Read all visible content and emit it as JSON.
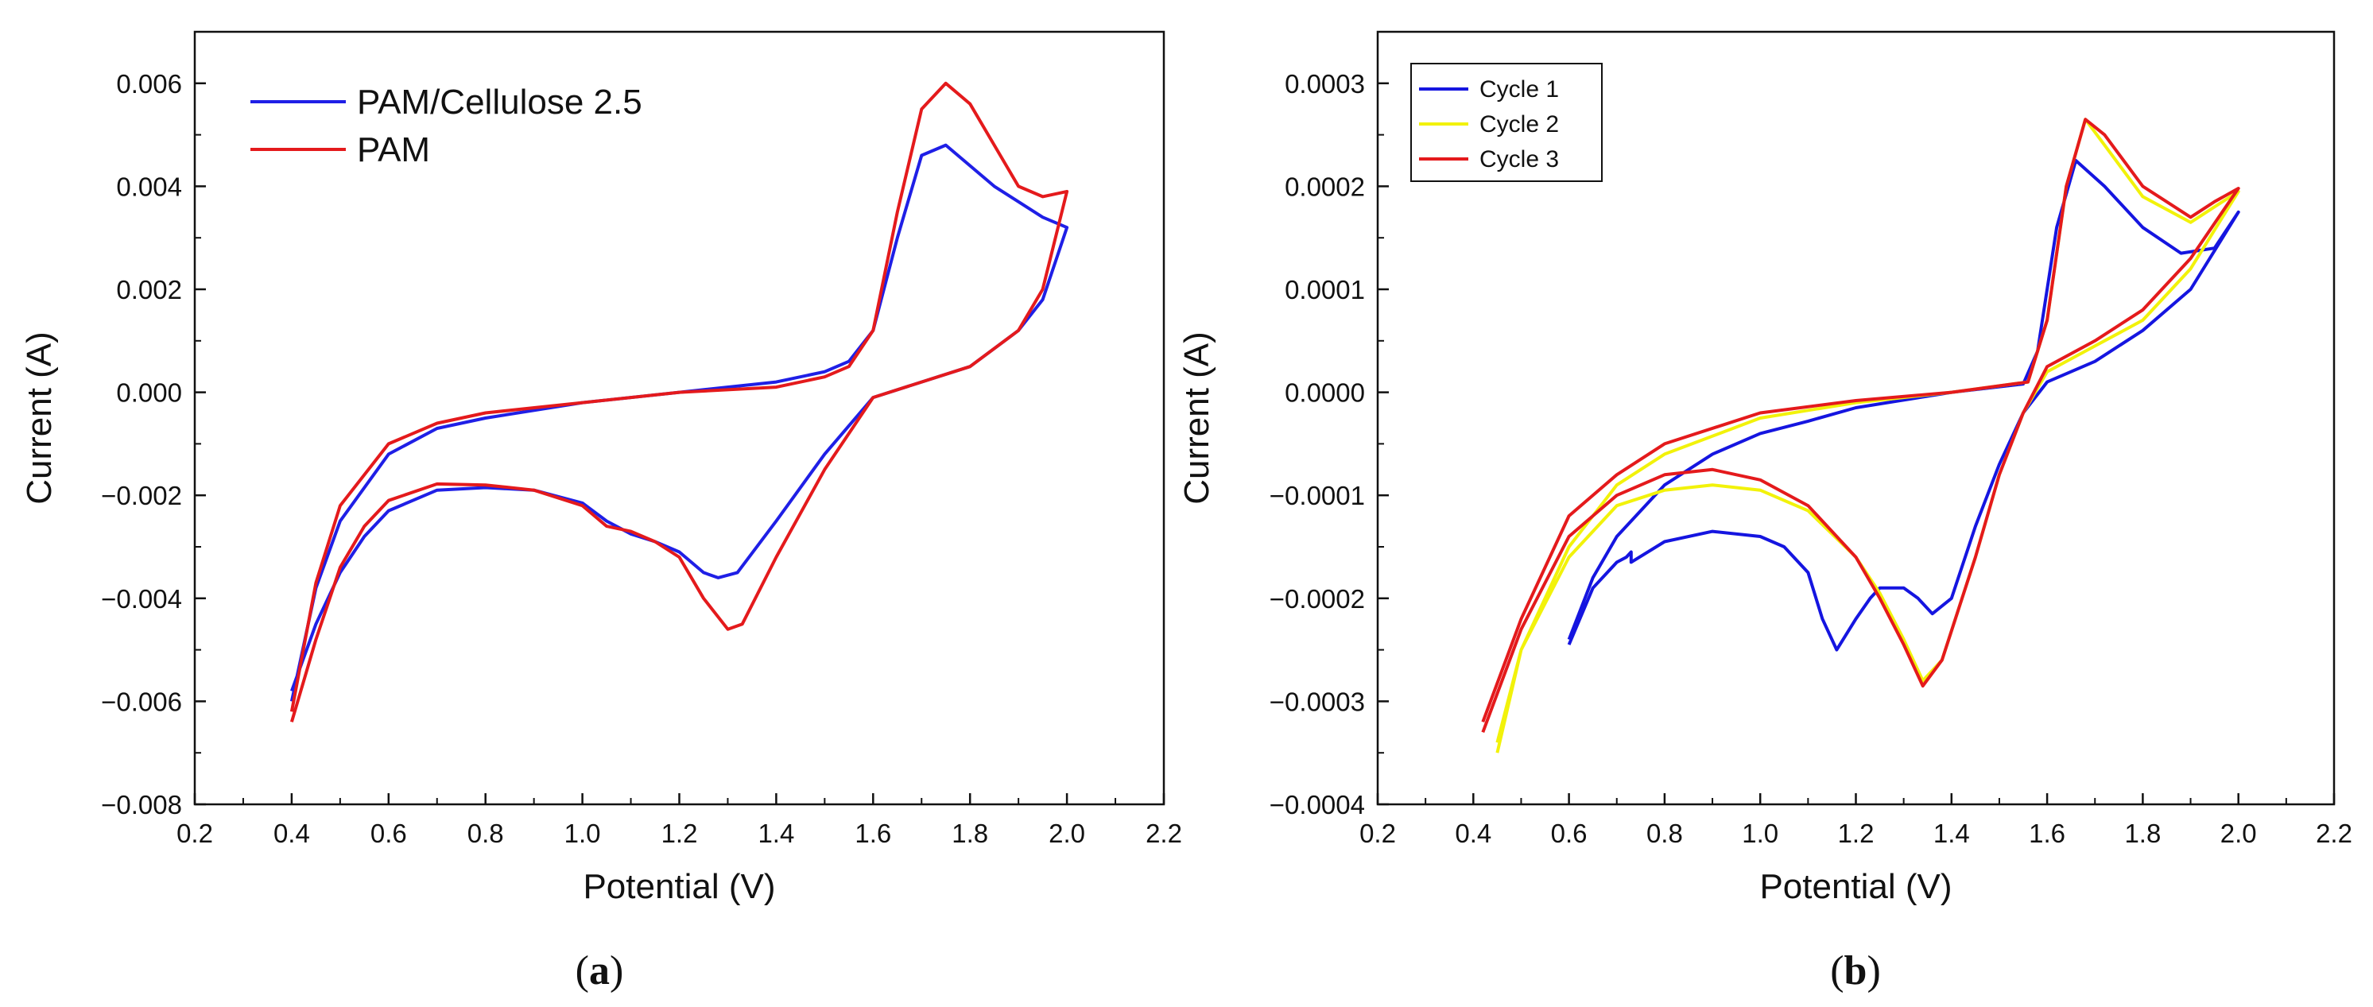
{
  "chart_data": [
    {
      "id": "a",
      "type": "line",
      "caption": "a",
      "xlabel": "Potential (V)",
      "ylabel": "Current (A)",
      "xlim": [
        0.2,
        2.2
      ],
      "ylim": [
        -0.008,
        0.007
      ],
      "xticks": [
        "0.2",
        "0.4",
        "0.6",
        "0.8",
        "1.0",
        "1.2",
        "1.4",
        "1.6",
        "1.8",
        "2.0",
        "2.2"
      ],
      "yticks": [
        "-0.008",
        "-0.006",
        "-0.004",
        "-0.002",
        "0.000",
        "0.002",
        "0.004",
        "0.006"
      ],
      "legend_position": "top-left",
      "grid": false,
      "series": [
        {
          "name": "PAM/Cellulose 2.5",
          "color": "#1f1fe6",
          "points": [
            [
              0.4,
              -0.0058
            ],
            [
              0.45,
              -0.0045
            ],
            [
              0.5,
              -0.0035
            ],
            [
              0.55,
              -0.0028
            ],
            [
              0.6,
              -0.0023
            ],
            [
              0.7,
              -0.0019
            ],
            [
              0.8,
              -0.00185
            ],
            [
              0.9,
              -0.0019
            ],
            [
              1.0,
              -0.00215
            ],
            [
              1.05,
              -0.0025
            ],
            [
              1.1,
              -0.00275
            ],
            [
              1.15,
              -0.0029
            ],
            [
              1.2,
              -0.0031
            ],
            [
              1.25,
              -0.0035
            ],
            [
              1.28,
              -0.0036
            ],
            [
              1.32,
              -0.0035
            ],
            [
              1.4,
              -0.0025
            ],
            [
              1.5,
              -0.0012
            ],
            [
              1.6,
              -0.0001
            ],
            [
              1.7,
              0.0002
            ],
            [
              1.8,
              0.0005
            ],
            [
              1.9,
              0.0012
            ],
            [
              1.95,
              0.0018
            ],
            [
              2.0,
              0.0032
            ],
            [
              1.95,
              0.0034
            ],
            [
              1.85,
              0.004
            ],
            [
              1.8,
              0.0044
            ],
            [
              1.75,
              0.0048
            ],
            [
              1.7,
              0.0046
            ],
            [
              1.65,
              0.003
            ],
            [
              1.6,
              0.0012
            ],
            [
              1.55,
              0.0006
            ],
            [
              1.5,
              0.0004
            ],
            [
              1.4,
              0.0002
            ],
            [
              1.2,
              0.0
            ],
            [
              1.0,
              -0.0002
            ],
            [
              0.8,
              -0.0005
            ],
            [
              0.7,
              -0.0007
            ],
            [
              0.6,
              -0.0012
            ],
            [
              0.5,
              -0.0025
            ],
            [
              0.45,
              -0.0038
            ],
            [
              0.4,
              -0.006
            ]
          ]
        },
        {
          "name": "PAM",
          "color": "#e41a1c",
          "points": [
            [
              0.4,
              -0.0064
            ],
            [
              0.45,
              -0.0048
            ],
            [
              0.5,
              -0.0034
            ],
            [
              0.55,
              -0.0026
            ],
            [
              0.6,
              -0.0021
            ],
            [
              0.7,
              -0.00178
            ],
            [
              0.8,
              -0.0018
            ],
            [
              0.9,
              -0.0019
            ],
            [
              1.0,
              -0.0022
            ],
            [
              1.05,
              -0.0026
            ],
            [
              1.1,
              -0.0027
            ],
            [
              1.15,
              -0.0029
            ],
            [
              1.2,
              -0.0032
            ],
            [
              1.25,
              -0.004
            ],
            [
              1.3,
              -0.0046
            ],
            [
              1.33,
              -0.0045
            ],
            [
              1.4,
              -0.0032
            ],
            [
              1.5,
              -0.0015
            ],
            [
              1.6,
              -0.0001
            ],
            [
              1.7,
              0.0002
            ],
            [
              1.8,
              0.0005
            ],
            [
              1.9,
              0.0012
            ],
            [
              1.95,
              0.002
            ],
            [
              2.0,
              0.0039
            ],
            [
              1.95,
              0.0038
            ],
            [
              1.9,
              0.004
            ],
            [
              1.85,
              0.0048
            ],
            [
              1.8,
              0.0056
            ],
            [
              1.75,
              0.006
            ],
            [
              1.7,
              0.0055
            ],
            [
              1.65,
              0.0035
            ],
            [
              1.6,
              0.0012
            ],
            [
              1.55,
              0.0005
            ],
            [
              1.5,
              0.0003
            ],
            [
              1.4,
              0.0001
            ],
            [
              1.2,
              0.0
            ],
            [
              1.0,
              -0.0002
            ],
            [
              0.8,
              -0.0004
            ],
            [
              0.7,
              -0.0006
            ],
            [
              0.6,
              -0.001
            ],
            [
              0.5,
              -0.0022
            ],
            [
              0.45,
              -0.0037
            ],
            [
              0.4,
              -0.0062
            ]
          ]
        }
      ]
    },
    {
      "id": "b",
      "type": "line",
      "caption": "b",
      "xlabel": "Potential (V)",
      "ylabel": "Current (A)",
      "xlim": [
        0.2,
        2.2
      ],
      "ylim": [
        -0.0004,
        0.00035
      ],
      "xticks": [
        "0.2",
        "0.4",
        "0.6",
        "0.8",
        "1.0",
        "1.2",
        "1.4",
        "1.6",
        "1.8",
        "2.0",
        "2.2"
      ],
      "yticks": [
        "-0.0004",
        "-0.0003",
        "-0.0002",
        "-0.0001",
        "0.0000",
        "0.0001",
        "0.0002",
        "0.0003"
      ],
      "legend_position": "top-left",
      "grid": false,
      "series": [
        {
          "name": "Cycle 1",
          "color": "#1515e0",
          "points": [
            [
              0.6,
              -0.000245
            ],
            [
              0.65,
              -0.00019
            ],
            [
              0.7,
              -0.000165
            ],
            [
              0.72,
              -0.00016
            ],
            [
              0.73,
              -0.000155
            ],
            [
              0.73,
              -0.000165
            ],
            [
              0.8,
              -0.000145
            ],
            [
              0.9,
              -0.000135
            ],
            [
              1.0,
              -0.00014
            ],
            [
              1.05,
              -0.00015
            ],
            [
              1.1,
              -0.000175
            ],
            [
              1.13,
              -0.00022
            ],
            [
              1.16,
              -0.00025
            ],
            [
              1.2,
              -0.00022
            ],
            [
              1.23,
              -0.0002
            ],
            [
              1.25,
              -0.00019
            ],
            [
              1.3,
              -0.00019
            ],
            [
              1.33,
              -0.0002
            ],
            [
              1.36,
              -0.000215
            ],
            [
              1.4,
              -0.0002
            ],
            [
              1.45,
              -0.00013
            ],
            [
              1.5,
              -7e-05
            ],
            [
              1.55,
              -2e-05
            ],
            [
              1.6,
              1e-05
            ],
            [
              1.7,
              3e-05
            ],
            [
              1.8,
              6e-05
            ],
            [
              1.9,
              0.0001
            ],
            [
              2.0,
              0.000175
            ],
            [
              1.95,
              0.00014
            ],
            [
              1.88,
              0.000135
            ],
            [
              1.8,
              0.00016
            ],
            [
              1.72,
              0.0002
            ],
            [
              1.66,
              0.000225
            ],
            [
              1.62,
              0.00016
            ],
            [
              1.58,
              4e-05
            ],
            [
              1.55,
              8e-06
            ],
            [
              1.4,
              0.0
            ],
            [
              1.2,
              -1.5e-05
            ],
            [
              1.1,
              -2.8e-05
            ],
            [
              1.0,
              -4e-05
            ],
            [
              0.9,
              -6e-05
            ],
            [
              0.8,
              -9e-05
            ],
            [
              0.7,
              -0.00014
            ],
            [
              0.65,
              -0.00018
            ],
            [
              0.6,
              -0.00024
            ]
          ]
        },
        {
          "name": "Cycle 2",
          "color": "#f2f20a",
          "points": [
            [
              0.45,
              -0.00035
            ],
            [
              0.5,
              -0.00025
            ],
            [
              0.6,
              -0.00016
            ],
            [
              0.7,
              -0.00011
            ],
            [
              0.8,
              -9.5e-05
            ],
            [
              0.9,
              -9e-05
            ],
            [
              1.0,
              -9.5e-05
            ],
            [
              1.1,
              -0.000115
            ],
            [
              1.2,
              -0.00016
            ],
            [
              1.25,
              -0.000195
            ],
            [
              1.3,
              -0.00024
            ],
            [
              1.34,
              -0.00028
            ],
            [
              1.38,
              -0.00026
            ],
            [
              1.45,
              -0.00016
            ],
            [
              1.5,
              -8e-05
            ],
            [
              1.55,
              -2e-05
            ],
            [
              1.6,
              2e-05
            ],
            [
              1.7,
              4.5e-05
            ],
            [
              1.8,
              7e-05
            ],
            [
              1.9,
              0.00012
            ],
            [
              2.0,
              0.000195
            ],
            [
              1.95,
              0.00018
            ],
            [
              1.9,
              0.000165
            ],
            [
              1.8,
              0.00019
            ],
            [
              1.72,
              0.00024
            ],
            [
              1.68,
              0.000265
            ],
            [
              1.64,
              0.0002
            ],
            [
              1.6,
              7e-05
            ],
            [
              1.56,
              1e-05
            ],
            [
              1.4,
              0.0
            ],
            [
              1.2,
              -1e-05
            ],
            [
              1.0,
              -2.5e-05
            ],
            [
              0.8,
              -6e-05
            ],
            [
              0.7,
              -9e-05
            ],
            [
              0.6,
              -0.00015
            ],
            [
              0.5,
              -0.00025
            ],
            [
              0.45,
              -0.00034
            ]
          ]
        },
        {
          "name": "Cycle 3",
          "color": "#e41a1c",
          "points": [
            [
              0.42,
              -0.00033
            ],
            [
              0.5,
              -0.00023
            ],
            [
              0.6,
              -0.00014
            ],
            [
              0.7,
              -0.0001
            ],
            [
              0.8,
              -8e-05
            ],
            [
              0.9,
              -7.5e-05
            ],
            [
              1.0,
              -8.5e-05
            ],
            [
              1.1,
              -0.00011
            ],
            [
              1.2,
              -0.00016
            ],
            [
              1.25,
              -0.0002
            ],
            [
              1.3,
              -0.000245
            ],
            [
              1.34,
              -0.000285
            ],
            [
              1.38,
              -0.00026
            ],
            [
              1.45,
              -0.00016
            ],
            [
              1.5,
              -8e-05
            ],
            [
              1.55,
              -2e-05
            ],
            [
              1.6,
              2.5e-05
            ],
            [
              1.7,
              5e-05
            ],
            [
              1.8,
              8e-05
            ],
            [
              1.9,
              0.00013
            ],
            [
              2.0,
              0.000198
            ],
            [
              1.95,
              0.000185
            ],
            [
              1.9,
              0.00017
            ],
            [
              1.8,
              0.0002
            ],
            [
              1.72,
              0.00025
            ],
            [
              1.68,
              0.000265
            ],
            [
              1.64,
              0.0002
            ],
            [
              1.6,
              7e-05
            ],
            [
              1.56,
              1e-05
            ],
            [
              1.4,
              0.0
            ],
            [
              1.2,
              -8e-06
            ],
            [
              1.0,
              -2e-05
            ],
            [
              0.8,
              -5e-05
            ],
            [
              0.7,
              -8e-05
            ],
            [
              0.6,
              -0.00012
            ],
            [
              0.5,
              -0.00022
            ],
            [
              0.42,
              -0.00032
            ]
          ]
        }
      ]
    }
  ]
}
